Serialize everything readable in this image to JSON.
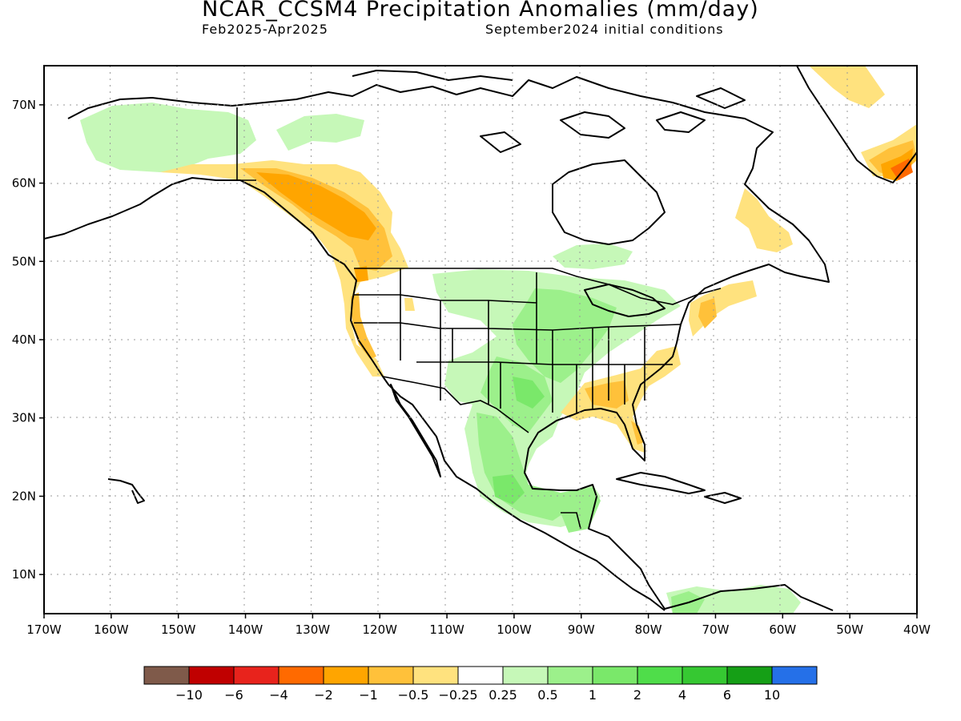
{
  "title": "NCAR_CCSM4 Precipitation Anomalies (mm/day)",
  "subtitle_left": "Feb2025-Apr2025",
  "subtitle_right": "September2024 initial conditions",
  "map": {
    "lon_range": [
      -170,
      -40
    ],
    "lat_range": [
      5,
      75
    ],
    "lon_ticks": [
      "170W",
      "160W",
      "150W",
      "140W",
      "130W",
      "120W",
      "110W",
      "100W",
      "90W",
      "80W",
      "70W",
      "60W",
      "50W",
      "40W"
    ],
    "lat_ticks": [
      "10N",
      "20N",
      "30N",
      "40N",
      "50N",
      "60N",
      "70N"
    ],
    "grid": "dotted"
  },
  "colorbar": {
    "labels": [
      "-10",
      "-6",
      "-4",
      "-2",
      "-1",
      "-0.5",
      "-0.25",
      "0.25",
      "0.5",
      "1",
      "2",
      "4",
      "6",
      "10"
    ],
    "colors": [
      "#7f5a4a",
      "#c00000",
      "#e8231c",
      "#ff6a00",
      "#ffa500",
      "#ffc13a",
      "#ffe27e",
      "#ffffff",
      "#c6f8b8",
      "#9cf08b",
      "#7ae86a",
      "#4fdd4a",
      "#36c832",
      "#159f16",
      "#2570e8"
    ]
  },
  "anomaly_regions": [
    {
      "region": "Alaska panhandle / British Columbia coast",
      "sign": "dry",
      "category": "-2 to -1"
    },
    {
      "region": "Pacific Northwest and California coast",
      "sign": "dry",
      "category": "-1 to -0.5"
    },
    {
      "region": "Southeast US and Florida",
      "sign": "dry",
      "category": "-1 to -0.5"
    },
    {
      "region": "US Northeast coast",
      "sign": "dry",
      "category": "-1 to -0.5"
    },
    {
      "region": "Labrador",
      "sign": "dry",
      "category": "-0.5 to -0.25"
    },
    {
      "region": "Southern Greenland",
      "sign": "dry",
      "category": "-2 to -0.5"
    },
    {
      "region": "Western Alaska",
      "sign": "wet",
      "category": "0.25 to 0.5"
    },
    {
      "region": "Central US and Mississippi valley",
      "sign": "wet",
      "category": "0.5 to 1"
    },
    {
      "region": "Texas and eastern Mexico",
      "sign": "wet",
      "category": "0.5 to 2"
    },
    {
      "region": "Southern Mexico and Central America",
      "sign": "wet",
      "category": "0.5 to 2"
    },
    {
      "region": "Northern South America",
      "sign": "wet",
      "category": "0.25 to 2"
    }
  ]
}
